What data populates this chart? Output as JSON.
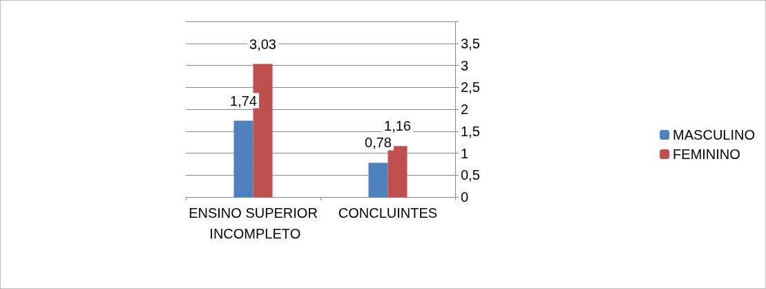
{
  "chart_data": {
    "type": "bar",
    "categories": [
      "ENSINO SUPERIOR INCOMPLETO",
      "CONCLUINTES"
    ],
    "series": [
      {
        "name": "MASCULINO",
        "color": "#4f81bd",
        "values": [
          1.74,
          0.78
        ],
        "value_labels": [
          "1,74",
          "0,78"
        ]
      },
      {
        "name": "FEMININO",
        "color": "#c0504d",
        "values": [
          3.03,
          1.16
        ],
        "value_labels": [
          "3,03",
          "1,16"
        ]
      }
    ],
    "ylim": [
      0,
      4
    ],
    "yticks": [
      {
        "value": 0,
        "label": "0"
      },
      {
        "value": 0.5,
        "label": "0,5"
      },
      {
        "value": 1,
        "label": "1"
      },
      {
        "value": 1.5,
        "label": "1,5"
      },
      {
        "value": 2,
        "label": "2"
      },
      {
        "value": 2.5,
        "label": "2,5"
      },
      {
        "value": 3,
        "label": "3"
      },
      {
        "value": 3.5,
        "label": "3,5"
      },
      {
        "value": 4,
        "label": null
      }
    ],
    "grid": "y",
    "legend": "right"
  }
}
